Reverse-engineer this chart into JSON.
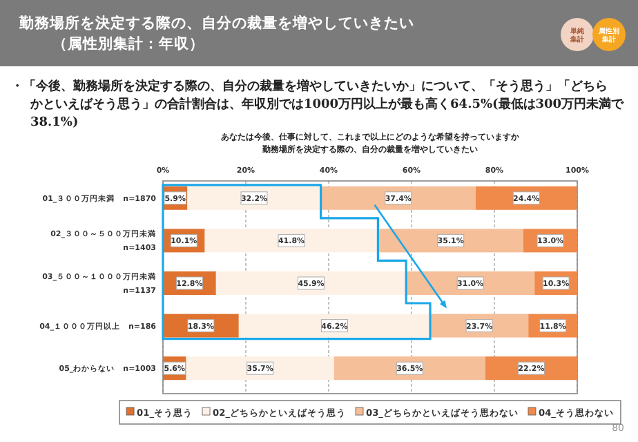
{
  "chart_data": {
    "type": "bar",
    "orientation": "horizontal",
    "stacked": true,
    "title": "勤務場所を決定する際の、自分の裁量を増やしていきたい（属性別集計：年収）",
    "subtitle": "・「今後、勤務場所を決定する際の、自分の裁量を増やしていきたいか」について、「そう思う」「どちらかといえばそう思う」の合計割合は、年収別では1000万円以上が最も高く64.5%(最低は300万円未満で38.1%)",
    "annotations": [
      "あなたは今後、仕事に対して、これまで以上にどのような希望を持っていますか勤務場所を決定する際の、自分の裁量を増やしていきたい",
      "単純集計",
      "属性別集計",
      "80"
    ],
    "categories": [
      "01_３００万円未満　n=1870",
      "02_３００～５００万円未満\nn=1403",
      "03_５００～１０００万円未満\nn=1137",
      "04_１０００万円以上　n=186",
      "05_わからない　n=1003"
    ],
    "series": [
      {
        "name": "01_そう思う",
        "color": "#e0722f",
        "values": [
          5.9,
          10.1,
          12.8,
          18.3,
          5.6
        ],
        "value_labels": [
          "5.9%",
          "10.1%",
          "12.8%",
          "18.3%",
          "5.6%"
        ]
      },
      {
        "name": "02_どちらかといえばそう思う",
        "color": "#fdf1e6",
        "values": [
          32.2,
          41.8,
          45.9,
          46.2,
          35.7
        ],
        "value_labels": [
          "32.2%",
          "41.8%",
          "45.9%",
          "46.2%",
          "35.7%"
        ]
      },
      {
        "name": "03_どちらかといえばそう思わない",
        "color": "#f5bf99",
        "values": [
          37.4,
          35.1,
          31.0,
          23.7,
          36.5
        ],
        "value_labels": [
          "37.4%",
          "35.1%",
          "31.0%",
          "23.7%",
          "36.5%"
        ]
      },
      {
        "name": "04_そう思わない",
        "color": "#f08a4b",
        "values": [
          24.4,
          13.0,
          10.3,
          11.8,
          22.2
        ],
        "value_labels": [
          "24.4%",
          "13.0%",
          "10.3%",
          "11.8%",
          "22.2%"
        ]
      }
    ],
    "xlim": [
      0,
      100
    ],
    "xticks": [
      {
        "value": 0,
        "label": "0%"
      },
      {
        "value": 20,
        "label": "20%"
      },
      {
        "value": 40,
        "label": "40%"
      },
      {
        "value": 60,
        "label": "60%"
      },
      {
        "value": 80,
        "label": "80%"
      },
      {
        "value": 100,
        "label": "100%"
      }
    ],
    "grid": "x",
    "legend": "bottom"
  }
}
